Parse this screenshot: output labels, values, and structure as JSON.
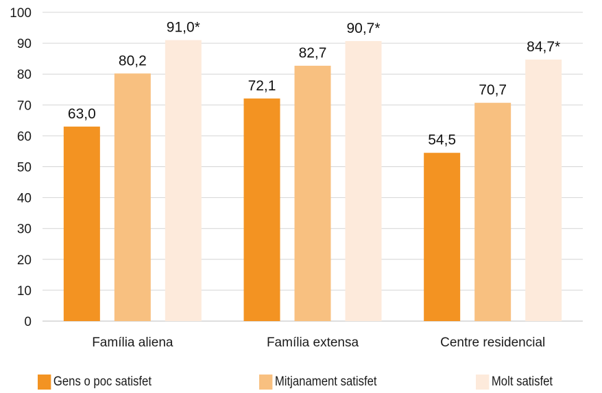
{
  "chart_data": {
    "type": "bar",
    "title": "",
    "xlabel": "",
    "ylabel": "",
    "ylim": [
      0,
      100
    ],
    "yticks": [
      0,
      10,
      20,
      30,
      40,
      50,
      60,
      70,
      80,
      90,
      100
    ],
    "grid": "horizontal",
    "legend_position": "bottom",
    "categories": [
      "Família aliena",
      "Família extensa",
      "Centre residencial"
    ],
    "series": [
      {
        "name": "Gens o poc satisfet",
        "color": "#f39322",
        "values": [
          63.0,
          72.1,
          54.5
        ],
        "labels": [
          "63,0",
          "72,1",
          "54,5"
        ]
      },
      {
        "name": "Mitjanament satisfet",
        "color": "#f8c080",
        "values": [
          80.2,
          82.7,
          70.7
        ],
        "labels": [
          "80,2",
          "82,7",
          "70,7"
        ]
      },
      {
        "name": "Molt satisfet",
        "color": "#fdeadb",
        "values": [
          91.0,
          90.7,
          84.7
        ],
        "labels": [
          "91,0*",
          "90,7*",
          "84,7*"
        ]
      }
    ]
  }
}
